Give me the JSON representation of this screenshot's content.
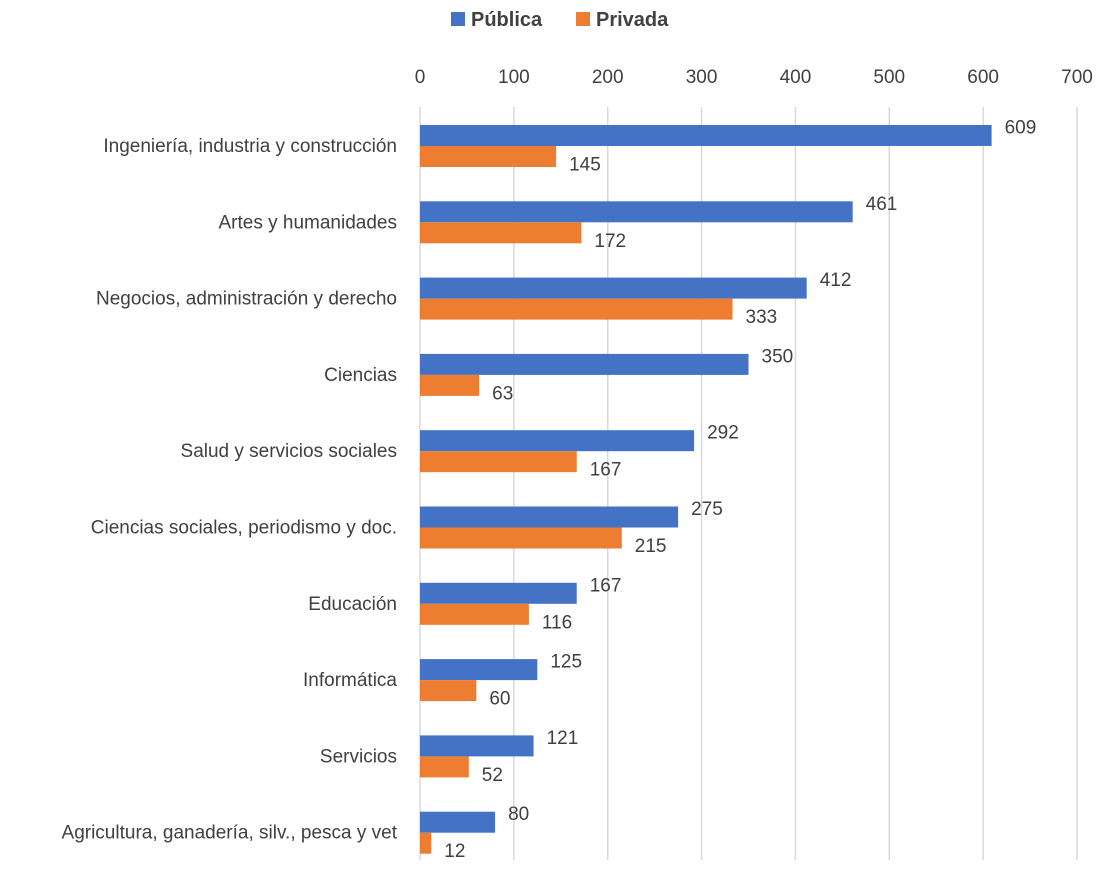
{
  "chart_data": {
    "type": "bar",
    "orientation": "horizontal",
    "categories": [
      "Ingeniería, industria y construcción",
      "Artes y humanidades",
      "Negocios, administración y derecho",
      "Ciencias",
      "Salud y servicios sociales",
      "Ciencias sociales, periodismo y doc.",
      "Educación",
      "Informática",
      "Servicios",
      "Agricultura, ganadería, silv., pesca y vet"
    ],
    "series": [
      {
        "name": "Pública",
        "color": "#4472c4",
        "values": [
          609,
          461,
          412,
          350,
          292,
          275,
          167,
          125,
          121,
          80
        ]
      },
      {
        "name": "Privada",
        "color": "#ed7d31",
        "values": [
          145,
          172,
          333,
          63,
          167,
          215,
          116,
          60,
          52,
          12
        ]
      }
    ],
    "xlim": [
      0,
      700
    ],
    "xticks": [
      "0",
      "100",
      "200",
      "300",
      "400",
      "500",
      "600",
      "700"
    ],
    "grid": true,
    "legend_position": "top",
    "data_labels": true
  }
}
